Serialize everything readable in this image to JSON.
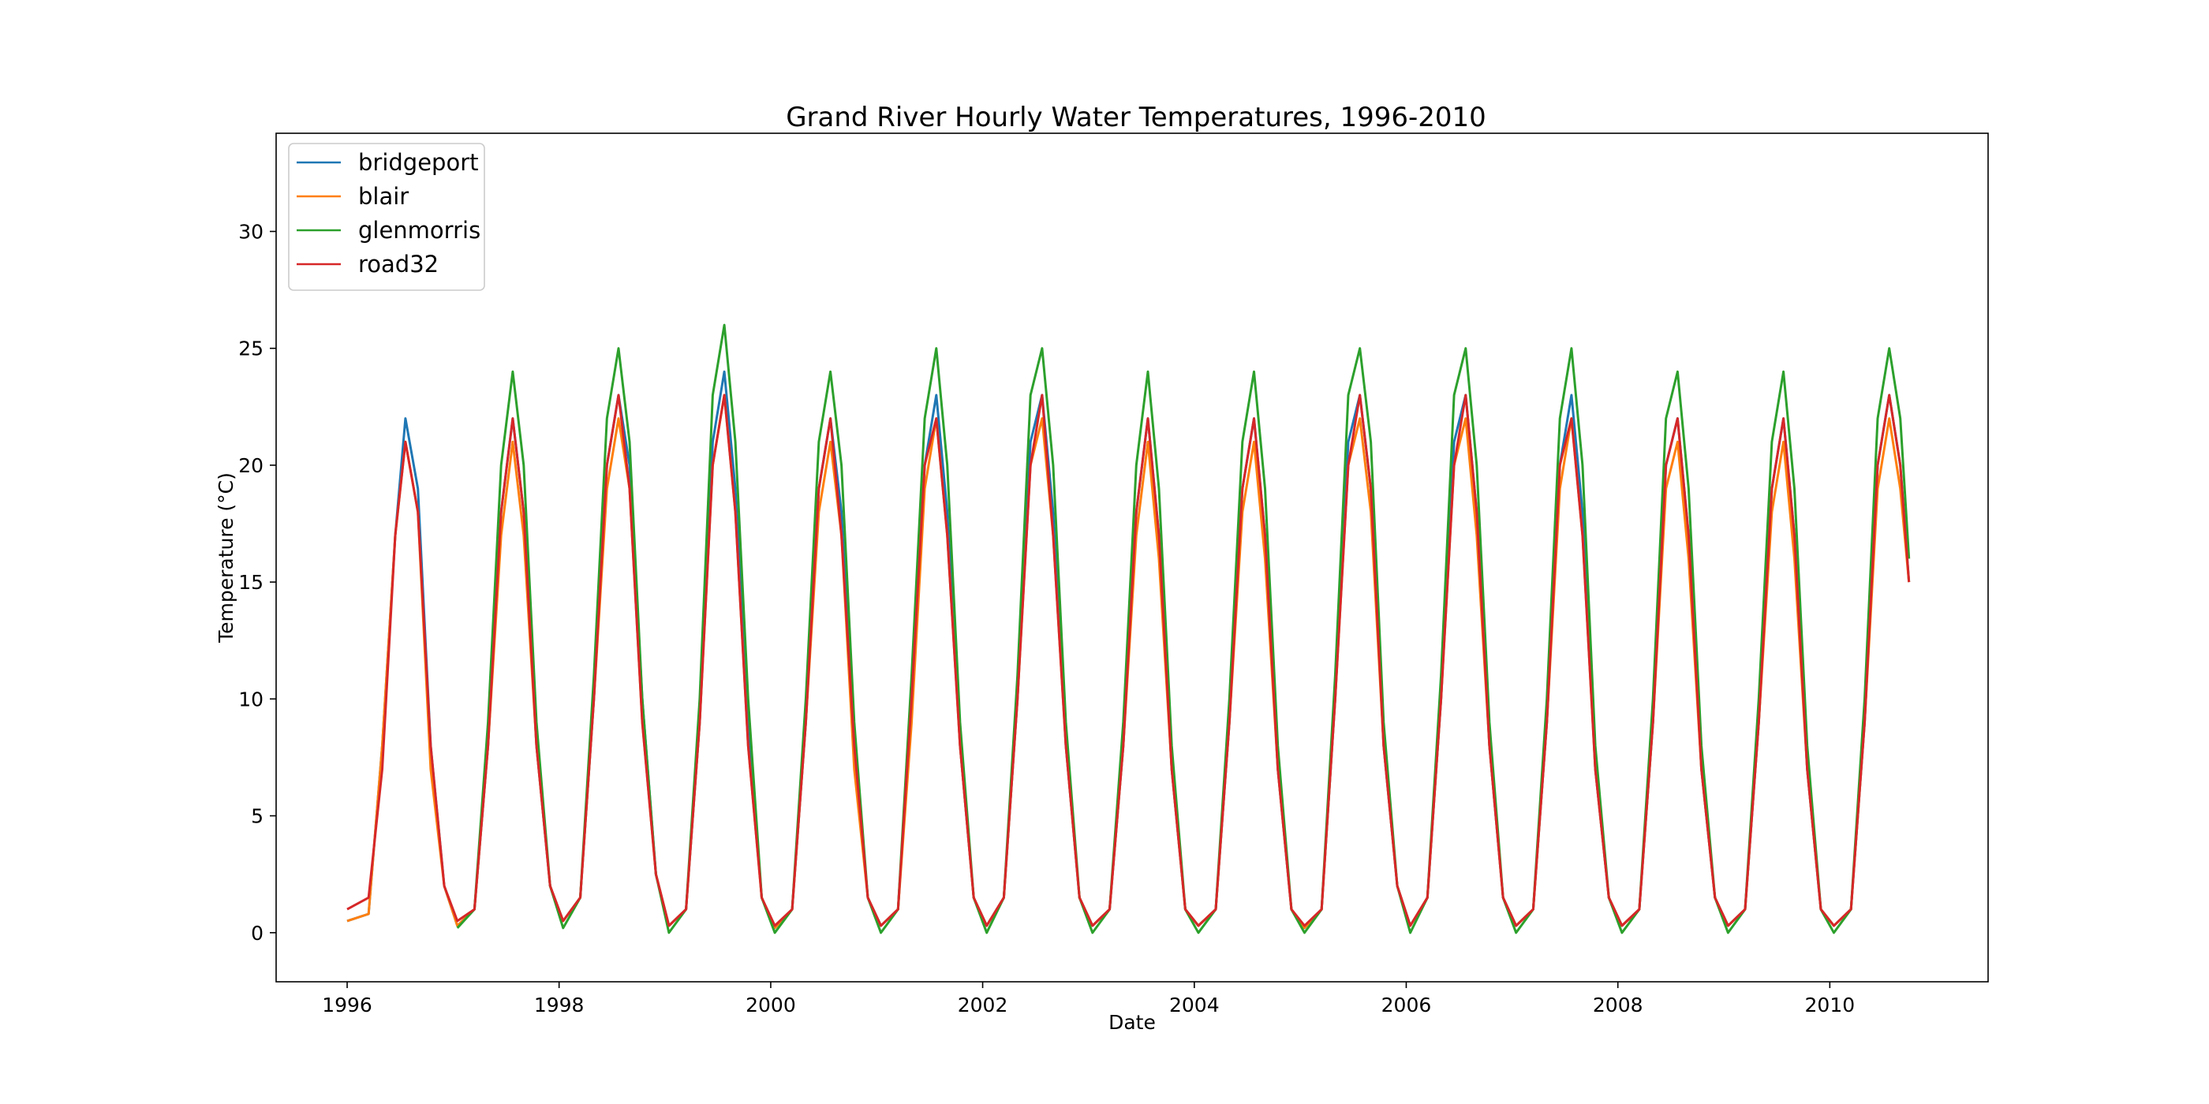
{
  "chart_data": {
    "type": "line",
    "title": "Grand River Hourly Water Temperatures, 1996-2010",
    "xlabel": "Date",
    "ylabel": "Temperature (°C)",
    "xlim": [
      "1995-05-01",
      "2011-07-01"
    ],
    "ylim": [
      -2.1,
      34.2
    ],
    "x_ticks": [
      "1996",
      "1998",
      "2000",
      "2002",
      "2004",
      "2006",
      "2008",
      "2010"
    ],
    "y_ticks": [
      "0",
      "5",
      "10",
      "15",
      "20",
      "25",
      "30"
    ],
    "grid": false,
    "legend_position": "top-left",
    "series": [
      {
        "name": "bridgeport",
        "color": "#1f77b4",
        "x": [
          "1996-01-01",
          "1996-03-15",
          "1996-05-01",
          "1996-06-15",
          "1996-07-20",
          "1996-09-01",
          "1996-10-15",
          "1996-12-01",
          "1997-01-15",
          "1997-03-15",
          "1997-05-01",
          "1997-06-15",
          "1997-07-25",
          "1997-09-01",
          "1997-10-15",
          "1997-12-01",
          "1998-01-15",
          "1998-03-15",
          "1998-05-01",
          "1998-06-15",
          "1998-07-25",
          "1998-09-01",
          "1998-10-15",
          "1998-12-01",
          "1999-01-15",
          "1999-03-15",
          "1999-05-01",
          "1999-06-15",
          "1999-07-25",
          "1999-09-01",
          "1999-10-15",
          "1999-12-01",
          "2000-01-15",
          "2000-03-15",
          "2000-05-01",
          "2000-06-15",
          "2000-07-25",
          "2000-09-01",
          "2000-10-15",
          "2000-12-01",
          "2001-01-15",
          "2001-03-15",
          "2001-05-01",
          "2001-06-15",
          "2001-07-25",
          "2001-09-01",
          "2001-10-15",
          "2001-12-01",
          "2002-01-15",
          "2002-03-15",
          "2002-05-01",
          "2002-06-15",
          "2002-07-25",
          "2002-09-01",
          "2002-10-15",
          "2002-12-01",
          "2003-01-15",
          "2003-03-15",
          "2003-05-01",
          "2003-06-15",
          "2003-07-25",
          "2003-09-01",
          "2003-10-15",
          "2003-12-01",
          "2004-01-15",
          "2004-03-15",
          "2004-05-01",
          "2004-06-15",
          "2004-07-25",
          "2004-09-01",
          "2004-10-15",
          "2004-12-01",
          "2005-01-15",
          "2005-03-15",
          "2005-05-01",
          "2005-06-15",
          "2005-07-25",
          "2005-09-01",
          "2005-10-15",
          "2005-12-01",
          "2006-01-15",
          "2006-03-15",
          "2006-05-01",
          "2006-06-15",
          "2006-07-25",
          "2006-09-01",
          "2006-10-15",
          "2006-12-01",
          "2007-01-15",
          "2007-03-15",
          "2007-05-01",
          "2007-06-15",
          "2007-07-25",
          "2007-09-01",
          "2007-10-15",
          "2007-12-01",
          "2008-01-15",
          "2008-03-15",
          "2008-05-01",
          "2008-06-15",
          "2008-07-25",
          "2008-09-01",
          "2008-10-15",
          "2008-12-01",
          "2009-01-15",
          "2009-03-15",
          "2009-05-01",
          "2009-06-15",
          "2009-07-25",
          "2009-09-01",
          "2009-10-15",
          "2009-12-01",
          "2010-01-15",
          "2010-03-15",
          "2010-05-01",
          "2010-06-15",
          "2010-07-25",
          "2010-09-01",
          "2010-10-01"
        ],
        "values": [
          0.5,
          0.8,
          8,
          17,
          22,
          19,
          8,
          2,
          0.3,
          1,
          8,
          18,
          22,
          18,
          8,
          2,
          0.5,
          1.5,
          10,
          20,
          23,
          20,
          10,
          2.5,
          0.3,
          1,
          9,
          21,
          24,
          19,
          9,
          1.5,
          0.2,
          1,
          9,
          19,
          22,
          18,
          8,
          1.5,
          0.3,
          1,
          10,
          20,
          23,
          18,
          8,
          1.5,
          0.3,
          1.5,
          10,
          21,
          23,
          18,
          8,
          1.5,
          0.3,
          1,
          8,
          18,
          22,
          17,
          7,
          1,
          0.3,
          1,
          9,
          19,
          22,
          17,
          7,
          1,
          0.2,
          1,
          10,
          21,
          23,
          19,
          8,
          2,
          0.3,
          1.5,
          10,
          21,
          23,
          18,
          8,
          1.5,
          0.3,
          1,
          9,
          20,
          23,
          18,
          7,
          1.5,
          0.3,
          1,
          9,
          20,
          22,
          17,
          7,
          1.5,
          0.3,
          1,
          9,
          19,
          22,
          17,
          7,
          1,
          0.3,
          1,
          9,
          20,
          23,
          20,
          15
        ]
      },
      {
        "name": "blair",
        "color": "#ff7f0e",
        "x": [
          "1996-01-01",
          "1996-03-15",
          "1996-05-01",
          "1996-06-15",
          "1996-07-20",
          "1996-09-01",
          "1996-10-15",
          "1996-12-01",
          "1997-01-15",
          "1997-03-15",
          "1997-05-01",
          "1997-06-15",
          "1997-07-25",
          "1997-09-01",
          "1997-10-15",
          "1997-12-01",
          "1998-01-15",
          "1998-03-15",
          "1998-05-01",
          "1998-06-15",
          "1998-07-25",
          "1998-09-01",
          "1998-10-15",
          "1998-12-01",
          "1999-01-15",
          "1999-03-15",
          "1999-05-01",
          "1999-06-15",
          "1999-07-25",
          "1999-09-01",
          "1999-10-15",
          "1999-12-01",
          "2000-01-15",
          "2000-03-15",
          "2000-05-01",
          "2000-06-15",
          "2000-07-25",
          "2000-09-01",
          "2000-10-15",
          "2000-12-01",
          "2001-01-15",
          "2001-03-15",
          "2001-05-01",
          "2001-06-15",
          "2001-07-25",
          "2001-09-01",
          "2001-10-15",
          "2001-12-01",
          "2002-01-15",
          "2002-03-15",
          "2002-05-01",
          "2002-06-15",
          "2002-07-25",
          "2002-09-01",
          "2002-10-15",
          "2002-12-01",
          "2003-01-15",
          "2003-03-15",
          "2003-05-01",
          "2003-06-15",
          "2003-07-25",
          "2003-09-01",
          "2003-10-15",
          "2003-12-01",
          "2004-01-15",
          "2004-03-15",
          "2004-05-01",
          "2004-06-15",
          "2004-07-25",
          "2004-09-01",
          "2004-10-15",
          "2004-12-01",
          "2005-01-15",
          "2005-03-15",
          "2005-05-01",
          "2005-06-15",
          "2005-07-25",
          "2005-09-01",
          "2005-10-15",
          "2005-12-01",
          "2006-01-15",
          "2006-03-15",
          "2006-05-01",
          "2006-06-15",
          "2006-07-25",
          "2006-09-01",
          "2006-10-15",
          "2006-12-01",
          "2007-01-15",
          "2007-03-15",
          "2007-05-01",
          "2007-06-15",
          "2007-07-25",
          "2007-09-01",
          "2007-10-15",
          "2007-12-01",
          "2008-01-15",
          "2008-03-15",
          "2008-05-01",
          "2008-06-15",
          "2008-07-25",
          "2008-09-01",
          "2008-10-15",
          "2008-12-01",
          "2009-01-15",
          "2009-03-15",
          "2009-05-01",
          "2009-06-15",
          "2009-07-25",
          "2009-09-01",
          "2009-10-15",
          "2009-12-01",
          "2010-01-15",
          "2010-03-15",
          "2010-05-01",
          "2010-06-15",
          "2010-07-25",
          "2010-09-01",
          "2010-10-01"
        ],
        "values": [
          0.5,
          0.8,
          8,
          17,
          21,
          18,
          7,
          2,
          0.3,
          1,
          8,
          17,
          21,
          17,
          8,
          2,
          0.5,
          1.5,
          10,
          19,
          22,
          19,
          9,
          2.5,
          0.3,
          1,
          9,
          20,
          23,
          18,
          8,
          1.5,
          0.2,
          1,
          9,
          18,
          21,
          17,
          7,
          1.5,
          0.3,
          1,
          9,
          19,
          22,
          17,
          8,
          1.5,
          0.3,
          1.5,
          10,
          20,
          22,
          17,
          8,
          1.5,
          0.3,
          1,
          8,
          17,
          21,
          16,
          7,
          1,
          0.3,
          1,
          9,
          18,
          21,
          16,
          7,
          1,
          0.2,
          1,
          10,
          20,
          22,
          18,
          8,
          2,
          0.3,
          1.5,
          10,
          20,
          22,
          17,
          8,
          1.5,
          0.3,
          1,
          9,
          19,
          22,
          17,
          7,
          1.5,
          0.3,
          1,
          9,
          19,
          21,
          16,
          7,
          1.5,
          0.3,
          1,
          9,
          18,
          21,
          16,
          7,
          1,
          0.3,
          1,
          9,
          19,
          22,
          19,
          15
        ]
      },
      {
        "name": "glenmorris",
        "color": "#2ca02c",
        "x": [
          "1997-01-15",
          "1997-03-15",
          "1997-05-01",
          "1997-06-15",
          "1997-07-25",
          "1997-09-01",
          "1997-10-15",
          "1997-12-01",
          "1998-01-15",
          "1998-03-15",
          "1998-05-01",
          "1998-06-15",
          "1998-07-25",
          "1998-09-01",
          "1998-10-15",
          "1998-12-01",
          "1999-01-15",
          "1999-03-15",
          "1999-05-01",
          "1999-06-15",
          "1999-07-25",
          "1999-09-01",
          "1999-10-15",
          "1999-12-01",
          "2000-01-15",
          "2000-03-15",
          "2000-05-01",
          "2000-06-15",
          "2000-07-25",
          "2000-09-01",
          "2000-10-15",
          "2000-12-01",
          "2001-01-15",
          "2001-03-15",
          "2001-05-01",
          "2001-06-15",
          "2001-07-25",
          "2001-09-01",
          "2001-10-15",
          "2001-12-01",
          "2002-01-15",
          "2002-03-15",
          "2002-05-01",
          "2002-06-15",
          "2002-07-25",
          "2002-09-01",
          "2002-10-15",
          "2002-12-01",
          "2003-01-15",
          "2003-03-15",
          "2003-05-01",
          "2003-06-15",
          "2003-07-25",
          "2003-09-01",
          "2003-10-15",
          "2003-12-01",
          "2004-01-15",
          "2004-03-15",
          "2004-05-01",
          "2004-06-15",
          "2004-07-25",
          "2004-09-01",
          "2004-10-15",
          "2004-12-01",
          "2005-01-15",
          "2005-03-15",
          "2005-05-01",
          "2005-06-15",
          "2005-07-25",
          "2005-09-01",
          "2005-10-15",
          "2005-12-01",
          "2006-01-15",
          "2006-03-15",
          "2006-05-01",
          "2006-06-15",
          "2006-07-25",
          "2006-09-01",
          "2006-10-15",
          "2006-12-01",
          "2007-01-15",
          "2007-03-15",
          "2007-05-01",
          "2007-06-15",
          "2007-07-25",
          "2007-09-01",
          "2007-10-15",
          "2007-12-01",
          "2008-01-15",
          "2008-03-15",
          "2008-05-01",
          "2008-06-15",
          "2008-07-25",
          "2008-09-01",
          "2008-10-15",
          "2008-12-01",
          "2009-01-15",
          "2009-03-15",
          "2009-05-01",
          "2009-06-15",
          "2009-07-25",
          "2009-09-01",
          "2009-10-15",
          "2009-12-01",
          "2010-01-15",
          "2010-03-15",
          "2010-05-01",
          "2010-06-15",
          "2010-07-25",
          "2010-09-01",
          "2010-10-01"
        ],
        "values": [
          0.2,
          1,
          9,
          20,
          24,
          20,
          9,
          2,
          0.2,
          1.5,
          11,
          22,
          25,
          21,
          10,
          2.5,
          0,
          1,
          10,
          23,
          26,
          21,
          10,
          1.5,
          0,
          1,
          10,
          21,
          24,
          20,
          9,
          1.5,
          0,
          1,
          11,
          22,
          25,
          20,
          9,
          1.5,
          0,
          1.5,
          11,
          23,
          25,
          20,
          9,
          1.5,
          0,
          1,
          9,
          20,
          24,
          19,
          8,
          1,
          0,
          1,
          10,
          21,
          24,
          19,
          8,
          1,
          0,
          1,
          11,
          23,
          25,
          21,
          9,
          2,
          0,
          1.5,
          11,
          23,
          25,
          20,
          9,
          1.5,
          0,
          1,
          10,
          22,
          25,
          20,
          8,
          1.5,
          0,
          1,
          10,
          22,
          24,
          19,
          8,
          1.5,
          0,
          1,
          10,
          21,
          24,
          19,
          8,
          1,
          0,
          1,
          10,
          22,
          25,
          22,
          16
        ]
      },
      {
        "name": "road32",
        "color": "#d62728",
        "x": [
          "1996-01-01",
          "1996-03-15",
          "1996-05-01",
          "1996-06-15",
          "1996-07-20",
          "1996-09-01",
          "1996-10-15",
          "1996-12-01",
          "1997-01-15",
          "1997-03-15",
          "1997-05-01",
          "1997-06-15",
          "1997-07-25",
          "1997-09-01",
          "1997-10-15",
          "1997-12-01",
          "1998-01-15",
          "1998-03-15",
          "1998-05-01",
          "1998-06-15",
          "1998-07-25",
          "1998-09-01",
          "1998-10-15",
          "1998-12-01",
          "1999-01-15",
          "1999-03-15",
          "1999-05-01",
          "1999-06-15",
          "1999-07-25",
          "1999-09-01",
          "1999-10-15",
          "1999-12-01",
          "2000-01-15",
          "2000-03-15",
          "2000-05-01",
          "2000-06-15",
          "2000-07-25",
          "2000-09-01",
          "2000-10-15",
          "2000-12-01",
          "2001-01-15",
          "2001-03-15",
          "2001-05-01",
          "2001-06-15",
          "2001-07-25",
          "2001-09-01",
          "2001-10-15",
          "2001-12-01",
          "2002-01-15",
          "2002-03-15",
          "2002-05-01",
          "2002-06-15",
          "2002-07-25",
          "2002-09-01",
          "2002-10-15",
          "2002-12-01",
          "2003-01-15",
          "2003-03-15",
          "2003-05-01",
          "2003-06-15",
          "2003-07-25",
          "2003-09-01",
          "2003-10-15",
          "2003-12-01",
          "2004-01-15",
          "2004-03-15",
          "2004-05-01",
          "2004-06-15",
          "2004-07-25",
          "2004-09-01",
          "2004-10-15",
          "2004-12-01",
          "2005-01-15",
          "2005-03-15",
          "2005-05-01",
          "2005-06-15",
          "2005-07-25",
          "2005-09-01",
          "2005-10-15",
          "2005-12-01",
          "2006-01-15",
          "2006-03-15",
          "2006-05-01",
          "2006-06-15",
          "2006-07-25",
          "2006-09-01",
          "2006-10-15",
          "2006-12-01",
          "2007-01-15",
          "2007-03-15",
          "2007-05-01",
          "2007-06-15",
          "2007-07-25",
          "2007-09-01",
          "2007-10-15",
          "2007-12-01",
          "2008-01-15",
          "2008-03-15",
          "2008-05-01",
          "2008-06-15",
          "2008-07-25",
          "2008-09-01",
          "2008-10-15",
          "2008-12-01",
          "2009-01-15",
          "2009-03-15",
          "2009-05-01",
          "2009-06-15",
          "2009-07-25",
          "2009-09-01",
          "2009-10-15",
          "2009-12-01",
          "2010-01-15",
          "2010-03-15",
          "2010-05-01",
          "2010-06-15",
          "2010-07-25",
          "2010-09-01",
          "2010-10-01"
        ],
        "values": [
          1,
          1.5,
          7,
          17,
          21,
          18,
          8,
          2,
          0.5,
          1,
          8,
          18,
          22,
          18,
          8,
          2,
          0.5,
          1.5,
          10,
          20,
          23,
          19,
          9,
          2.5,
          0.3,
          1,
          9,
          20,
          23,
          18,
          8,
          1.5,
          0.3,
          1,
          9,
          19,
          22,
          17,
          8,
          1.5,
          0.3,
          1,
          10,
          20,
          22,
          17,
          8,
          1.5,
          0.3,
          1.5,
          10,
          20,
          23,
          17,
          8,
          1.5,
          0.3,
          1,
          8,
          18,
          22,
          17,
          7,
          1,
          0.3,
          1,
          9,
          19,
          22,
          17,
          7,
          1,
          0.3,
          1,
          10,
          20,
          23,
          19,
          8,
          2,
          0.3,
          1.5,
          10,
          20,
          23,
          18,
          8,
          1.5,
          0.3,
          1,
          9,
          20,
          22,
          17,
          7,
          1.5,
          0.3,
          1,
          9,
          20,
          22,
          17,
          7,
          1.5,
          0.3,
          1,
          9,
          19,
          22,
          17,
          7,
          1,
          0.3,
          1,
          9,
          20,
          23,
          20,
          15
        ]
      }
    ]
  }
}
